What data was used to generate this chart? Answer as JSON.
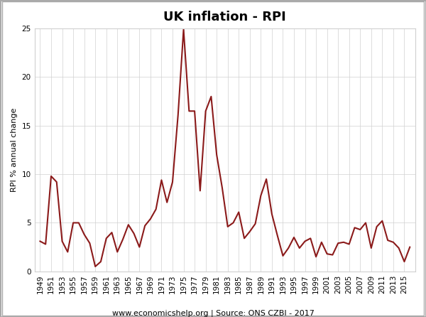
{
  "title": "UK inflation - RPI",
  "ylabel": "RPI % annual change",
  "footnote": "www.economicshelp.org | Source: ONS CZBI - 2017",
  "line_color": "#8B1A1A",
  "background_color": "#ffffff",
  "grid_color": "#d0d0d0",
  "years": [
    1949,
    1950,
    1951,
    1952,
    1953,
    1954,
    1955,
    1956,
    1957,
    1958,
    1959,
    1960,
    1961,
    1962,
    1963,
    1964,
    1965,
    1966,
    1967,
    1968,
    1969,
    1970,
    1971,
    1972,
    1973,
    1974,
    1975,
    1976,
    1977,
    1978,
    1979,
    1980,
    1981,
    1982,
    1983,
    1984,
    1985,
    1986,
    1987,
    1988,
    1989,
    1990,
    1991,
    1992,
    1993,
    1994,
    1995,
    1996,
    1997,
    1998,
    1999,
    2000,
    2001,
    2002,
    2003,
    2004,
    2005,
    2006,
    2007,
    2008,
    2009,
    2010,
    2011,
    2012,
    2013,
    2014,
    2015,
    2016
  ],
  "values": [
    3.1,
    2.8,
    9.8,
    9.2,
    3.1,
    2.0,
    5.0,
    5.0,
    3.8,
    2.9,
    0.5,
    1.0,
    3.4,
    4.0,
    2.0,
    3.3,
    4.8,
    3.9,
    2.5,
    4.7,
    5.4,
    6.4,
    9.4,
    7.1,
    9.2,
    16.1,
    24.9,
    16.5,
    16.5,
    8.3,
    16.5,
    18.0,
    12.0,
    8.6,
    4.6,
    5.0,
    6.1,
    3.4,
    4.1,
    4.9,
    7.8,
    9.5,
    5.9,
    3.7,
    1.6,
    2.4,
    3.5,
    2.4,
    3.1,
    3.4,
    1.5,
    3.0,
    1.8,
    1.7,
    2.9,
    3.0,
    2.8,
    4.5,
    4.3,
    5.0,
    2.4,
    4.6,
    5.2,
    3.2,
    3.0,
    2.4,
    1.0,
    2.5
  ],
  "xlim": [
    1948,
    2017
  ],
  "ylim": [
    0,
    25
  ],
  "yticks": [
    0,
    5,
    10,
    15,
    20,
    25
  ],
  "xtick_start": 1949,
  "xtick_end": 2016,
  "xtick_step": 2,
  "title_fontsize": 13,
  "ylabel_fontsize": 8,
  "tick_fontsize": 7.5,
  "footnote_fontsize": 8,
  "linewidth": 1.5
}
